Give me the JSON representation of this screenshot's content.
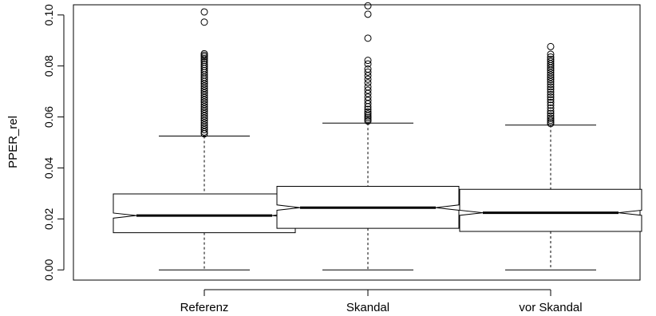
{
  "chart_data": {
    "type": "boxplot",
    "notched": true,
    "title": "",
    "xlabel": "",
    "ylabel": "PPER_rel",
    "ylim": [
      -0.004,
      0.104
    ],
    "yticks": [
      0.0,
      0.02,
      0.04,
      0.06,
      0.08,
      0.1
    ],
    "ytick_labels": [
      "0.00",
      "0.02",
      "0.04",
      "0.06",
      "0.08",
      "0.10"
    ],
    "grid": false,
    "categories": [
      "Referenz",
      "Skandal",
      "vor Skandal"
    ],
    "boxes": [
      {
        "name": "Referenz",
        "whisker_low": 0.0,
        "q1": 0.0146,
        "median": 0.0213,
        "q3": 0.0298,
        "whisker_high": 0.0525,
        "notch_low": 0.0203,
        "notch_high": 0.0223,
        "outliers": [
          0.1012,
          0.0972,
          0.0848,
          0.0842,
          0.0836,
          0.0829,
          0.0822,
          0.0815,
          0.0806,
          0.0798,
          0.079,
          0.0782,
          0.0774,
          0.0765,
          0.0756,
          0.0748,
          0.0739,
          0.073,
          0.0721,
          0.0712,
          0.0703,
          0.0694,
          0.0685,
          0.0676,
          0.0667,
          0.0658,
          0.0649,
          0.064,
          0.0631,
          0.0622,
          0.0613,
          0.0604,
          0.0595,
          0.0586,
          0.0577,
          0.0568,
          0.0559,
          0.055,
          0.0541,
          0.0534
        ]
      },
      {
        "name": "Skandal",
        "whisker_low": 0.0,
        "q1": 0.0163,
        "median": 0.0244,
        "q3": 0.0328,
        "whisker_high": 0.0576,
        "notch_low": 0.0234,
        "notch_high": 0.0255,
        "outliers": [
          0.1036,
          0.1003,
          0.0909,
          0.0822,
          0.0808,
          0.0788,
          0.0776,
          0.0762,
          0.0748,
          0.0734,
          0.0718,
          0.0705,
          0.0692,
          0.0678,
          0.0665,
          0.0652,
          0.064,
          0.063,
          0.062,
          0.0612,
          0.0604,
          0.0597,
          0.059,
          0.0584
        ]
      },
      {
        "name": "vor Skandal",
        "whisker_low": 0.0,
        "q1": 0.0151,
        "median": 0.0224,
        "q3": 0.0316,
        "whisker_high": 0.0568,
        "notch_low": 0.0214,
        "notch_high": 0.0234,
        "outliers": [
          0.0876,
          0.0846,
          0.0835,
          0.0826,
          0.0818,
          0.0809,
          0.0801,
          0.0792,
          0.0783,
          0.0774,
          0.0765,
          0.0756,
          0.0747,
          0.0738,
          0.0728,
          0.0718,
          0.0708,
          0.0698,
          0.0688,
          0.0678,
          0.0668,
          0.0657,
          0.0646,
          0.0635,
          0.0624,
          0.0614,
          0.0604,
          0.0595,
          0.0587,
          0.058,
          0.0574
        ]
      }
    ],
    "colors": {
      "line": "#000000",
      "box_fill": "#ffffff",
      "background": "#ffffff"
    }
  }
}
